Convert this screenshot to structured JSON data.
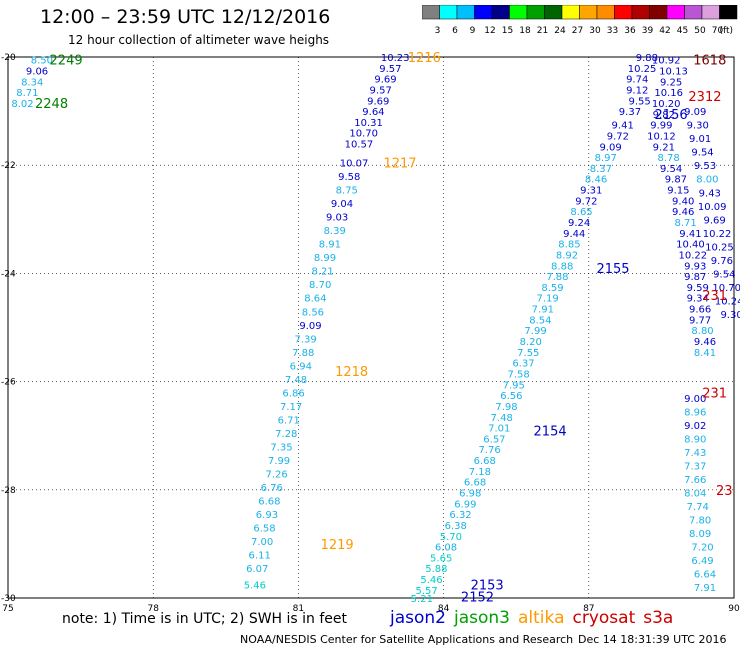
{
  "header": {
    "title": "12:00 – 23:59 UTC 12/12/2016",
    "subtitle": "12 hour collection of altimeter wave heighs"
  },
  "colorbar": {
    "labels": [
      "3",
      "6",
      "9",
      "12",
      "15",
      "18",
      "21",
      "24",
      "27",
      "30",
      "33",
      "36",
      "39",
      "42",
      "45",
      "50",
      "70",
      "(ft)"
    ],
    "colors": [
      "#808080",
      "#00ffff",
      "#00bfff",
      "#0000ff",
      "#00008b",
      "#00ff00",
      "#00a000",
      "#006400",
      "#ffff00",
      "#ffa500",
      "#ff8c00",
      "#ff0000",
      "#b00000",
      "#800000",
      "#ff00ff",
      "#ba55d3",
      "#dda0dd",
      "#000000"
    ]
  },
  "footer": {
    "note": "note: 1) Time is in UTC; 2) SWH is in feet",
    "credit": "NOAA/NESDIS Center for Satellite Applications and Research",
    "date": "Dec 14 18:31:39 UTC 2016"
  },
  "satellites": [
    {
      "name": "jason2",
      "color": "#0000cc"
    },
    {
      "name": "jason3",
      "color": "#00a000"
    },
    {
      "name": "altika",
      "color": "#ff9900"
    },
    {
      "name": "cryosat",
      "color": "#cc0000"
    },
    {
      "name": "s3a",
      "color": "#cc0000"
    }
  ],
  "chart_data": {
    "type": "scatter",
    "xlim": [
      75,
      90
    ],
    "ylim": [
      -30,
      -20
    ],
    "xticks": [
      75,
      78,
      81,
      84,
      87,
      90
    ],
    "yticks": [
      -20,
      -22,
      -24,
      -26,
      -28,
      -30
    ],
    "grid": true,
    "track_labels": [
      {
        "text": "2249",
        "x": 76.2,
        "y": -20.05,
        "color": "#008000"
      },
      {
        "text": "2248",
        "x": 75.9,
        "y": -20.85,
        "color": "#008000"
      },
      {
        "text": "1216",
        "x": 83.6,
        "y": -20.0,
        "color": "#ff9900"
      },
      {
        "text": "1217",
        "x": 83.1,
        "y": -21.95,
        "color": "#ff9900"
      },
      {
        "text": "1218",
        "x": 82.1,
        "y": -25.8,
        "color": "#ff9900"
      },
      {
        "text": "1219",
        "x": 81.8,
        "y": -29.0,
        "color": "#ff9900"
      },
      {
        "text": "2155",
        "x": 87.5,
        "y": -23.9,
        "color": "#0000cc"
      },
      {
        "text": "2154",
        "x": 86.2,
        "y": -26.9,
        "color": "#0000cc"
      },
      {
        "text": "2153",
        "x": 84.9,
        "y": -29.75,
        "color": "#0000cc"
      },
      {
        "text": "2152",
        "x": 84.7,
        "y": -29.97,
        "color": "#0000cc"
      },
      {
        "text": "2156",
        "x": 88.7,
        "y": -21.05,
        "color": "#0000cc"
      },
      {
        "text": "1618",
        "x": 89.5,
        "y": -20.05,
        "color": "#800000"
      },
      {
        "text": "2312",
        "x": 89.4,
        "y": -20.72,
        "color": "#cc0000"
      },
      {
        "text": "231",
        "x": 89.6,
        "y": -24.4,
        "color": "#cc0000"
      },
      {
        "text": "231",
        "x": 89.6,
        "y": -26.2,
        "color": "#cc0000"
      },
      {
        "text": "23",
        "x": 89.8,
        "y": -28.0,
        "color": "#cc0000"
      }
    ],
    "series": [
      {
        "name": "2249",
        "color_hint": "mixed",
        "points": [
          [
            75.7,
            -20.05,
            "8.50"
          ],
          [
            75.6,
            -20.25,
            "9.06"
          ],
          [
            75.5,
            -20.45,
            "8.34"
          ],
          [
            75.4,
            -20.65,
            "8.71"
          ],
          [
            75.3,
            -20.85,
            "8.02"
          ]
        ]
      },
      {
        "name": "1216",
        "points": [
          [
            83.0,
            -20.0,
            "10.23"
          ],
          [
            82.9,
            -20.2,
            "9.57"
          ],
          [
            82.8,
            -20.4,
            "9.69"
          ],
          [
            82.7,
            -20.6,
            "9.57"
          ],
          [
            82.65,
            -20.8,
            "9.69"
          ],
          [
            82.55,
            -21.0,
            "9.64"
          ],
          [
            82.45,
            -21.2,
            "10.31"
          ],
          [
            82.35,
            -21.4,
            "10.70"
          ],
          [
            82.25,
            -21.6,
            "10.57"
          ],
          [
            82.15,
            -21.95,
            "10.07"
          ],
          [
            82.05,
            -22.2,
            "9.58"
          ],
          [
            82.0,
            -22.45,
            "8.75"
          ],
          [
            81.9,
            -22.7,
            "9.04"
          ],
          [
            81.8,
            -22.95,
            "9.03"
          ],
          [
            81.75,
            -23.2,
            "8.39"
          ],
          [
            81.65,
            -23.45,
            "8.91"
          ],
          [
            81.55,
            -23.7,
            "8.99"
          ],
          [
            81.5,
            -23.95,
            "8.21"
          ],
          [
            81.45,
            -24.2,
            "8.70"
          ],
          [
            81.35,
            -24.45,
            "8.64"
          ],
          [
            81.3,
            -24.7,
            "8.56"
          ],
          [
            81.25,
            -24.95,
            "9.09"
          ],
          [
            81.15,
            -25.2,
            "7.39"
          ],
          [
            81.1,
            -25.45,
            "7.88"
          ],
          [
            81.05,
            -25.7,
            "6.94"
          ],
          [
            80.95,
            -25.95,
            "7.48"
          ],
          [
            80.9,
            -26.2,
            "6.86"
          ],
          [
            80.85,
            -26.45,
            "7.17"
          ],
          [
            80.8,
            -26.7,
            "6.71"
          ],
          [
            80.75,
            -26.95,
            "7.28"
          ],
          [
            80.65,
            -27.2,
            "7.35"
          ],
          [
            80.6,
            -27.45,
            "7.99"
          ],
          [
            80.55,
            -27.7,
            "7.26"
          ],
          [
            80.45,
            -27.95,
            "6.76"
          ],
          [
            80.4,
            -28.2,
            "6.68"
          ],
          [
            80.35,
            -28.45,
            "6.93"
          ],
          [
            80.3,
            -28.7,
            "6.58"
          ],
          [
            80.25,
            -28.95,
            "7.00"
          ],
          [
            80.2,
            -29.2,
            "6.11"
          ],
          [
            80.15,
            -29.45,
            "6.07"
          ],
          [
            80.1,
            -29.75,
            "5.46"
          ]
        ]
      },
      {
        "name": "2155",
        "points": [
          [
            87.85,
            -21.0,
            "9.37"
          ],
          [
            87.7,
            -21.25,
            "9.41"
          ],
          [
            87.6,
            -21.45,
            "9.72"
          ],
          [
            87.45,
            -21.65,
            "9.09"
          ],
          [
            87.35,
            -21.85,
            "8.97"
          ],
          [
            87.25,
            -22.05,
            "8.37"
          ],
          [
            87.15,
            -22.25,
            "8.46"
          ],
          [
            87.05,
            -22.45,
            "9.31"
          ],
          [
            86.95,
            -22.65,
            "9.72"
          ],
          [
            86.85,
            -22.85,
            "8.65"
          ],
          [
            86.8,
            -23.05,
            "9.24"
          ],
          [
            86.7,
            -23.25,
            "9.44"
          ],
          [
            86.6,
            -23.45,
            "8.85"
          ],
          [
            86.55,
            -23.65,
            "8.92"
          ],
          [
            86.45,
            -23.85,
            "8.88"
          ],
          [
            86.35,
            -24.05,
            "7.88"
          ],
          [
            86.25,
            -24.25,
            "8.59"
          ],
          [
            86.15,
            -24.45,
            "7.19"
          ],
          [
            86.05,
            -24.65,
            "7.91"
          ],
          [
            86.0,
            -24.85,
            "8.54"
          ],
          [
            85.9,
            -25.05,
            "7.99"
          ],
          [
            85.8,
            -25.25,
            "8.20"
          ],
          [
            85.75,
            -25.45,
            "7.55"
          ],
          [
            85.65,
            -25.65,
            "6.37"
          ],
          [
            85.55,
            -25.85,
            "7.58"
          ],
          [
            85.45,
            -26.05,
            "7.95"
          ],
          [
            85.4,
            -26.25,
            "6.56"
          ],
          [
            85.3,
            -26.45,
            "7.98"
          ],
          [
            85.2,
            -26.65,
            "7.48"
          ],
          [
            85.15,
            -26.85,
            "7.01"
          ],
          [
            85.05,
            -27.05,
            "6.57"
          ],
          [
            84.95,
            -27.25,
            "7.76"
          ],
          [
            84.85,
            -27.45,
            "6.68"
          ],
          [
            84.75,
            -27.65,
            "7.18"
          ],
          [
            84.65,
            -27.85,
            "6.68"
          ],
          [
            84.55,
            -28.05,
            "6.98"
          ],
          [
            84.45,
            -28.25,
            "6.99"
          ],
          [
            84.35,
            -28.45,
            "6.32"
          ],
          [
            84.25,
            -28.65,
            "6.38"
          ],
          [
            84.15,
            -28.85,
            "5.70"
          ],
          [
            84.05,
            -29.05,
            "6.08"
          ],
          [
            83.95,
            -29.25,
            "5.65"
          ],
          [
            83.85,
            -29.45,
            "5.88"
          ],
          [
            83.75,
            -29.65,
            "5.46"
          ],
          [
            83.65,
            -29.85,
            "5.57"
          ],
          [
            83.55,
            -30.0,
            "5.21"
          ]
        ]
      },
      {
        "name": "2156",
        "points": [
          [
            88.2,
            -20.0,
            "9.88"
          ],
          [
            88.1,
            -20.2,
            "10.25"
          ],
          [
            88.0,
            -20.4,
            "9.74"
          ],
          [
            88.0,
            -20.6,
            "9.12"
          ],
          [
            88.05,
            -20.8,
            "9.55"
          ],
          [
            88.6,
            -20.05,
            "10.92"
          ],
          [
            88.75,
            -20.25,
            "10.13"
          ],
          [
            88.7,
            -20.45,
            "9.25"
          ],
          [
            88.65,
            -20.65,
            "10.16"
          ],
          [
            88.6,
            -20.85,
            "10.20"
          ],
          [
            88.55,
            -21.05,
            "9.82"
          ],
          [
            88.5,
            -21.25,
            "9.99"
          ],
          [
            88.5,
            -21.45,
            "10.12"
          ],
          [
            88.55,
            -21.65,
            "9.21"
          ],
          [
            88.65,
            -21.85,
            "8.78"
          ],
          [
            88.7,
            -22.05,
            "9.54"
          ],
          [
            88.8,
            -22.25,
            "9.87"
          ],
          [
            88.85,
            -22.45,
            "9.15"
          ],
          [
            88.95,
            -22.65,
            "9.40"
          ],
          [
            88.95,
            -22.85,
            "9.46"
          ],
          [
            89.0,
            -23.05,
            "8.71"
          ],
          [
            89.1,
            -23.25,
            "9.41"
          ],
          [
            89.1,
            -23.45,
            "10.40"
          ],
          [
            89.15,
            -23.65,
            "10.22"
          ],
          [
            89.2,
            -23.85,
            "9.93"
          ],
          [
            89.2,
            -24.05,
            "9.87"
          ],
          [
            89.25,
            -24.25,
            "9.59"
          ],
          [
            89.25,
            -24.45,
            "9.34"
          ],
          [
            89.3,
            -24.65,
            "9.66"
          ],
          [
            89.3,
            -24.85,
            "9.77"
          ],
          [
            89.35,
            -25.05,
            "8.80"
          ],
          [
            89.4,
            -25.25,
            "9.46"
          ],
          [
            89.4,
            -25.45,
            "8.41"
          ]
        ]
      },
      {
        "name": "2312",
        "points": [
          [
            89.2,
            -21.0,
            "9.09"
          ],
          [
            89.25,
            -21.25,
            "9.30"
          ],
          [
            89.3,
            -21.5,
            "9.01"
          ],
          [
            89.35,
            -21.75,
            "9.54"
          ],
          [
            89.4,
            -22.0,
            "9.53"
          ],
          [
            89.45,
            -22.25,
            "8.00"
          ],
          [
            89.5,
            -22.5,
            "9.43"
          ],
          [
            89.55,
            -22.75,
            "10.09"
          ],
          [
            89.6,
            -23.0,
            "9.69"
          ],
          [
            89.65,
            -23.25,
            "10.22"
          ],
          [
            89.7,
            -23.5,
            "10.25"
          ],
          [
            89.75,
            -23.75,
            "9.76"
          ],
          [
            89.8,
            -24.0,
            "9.54"
          ],
          [
            89.85,
            -24.25,
            "10.70"
          ],
          [
            89.9,
            -24.5,
            "10.24"
          ],
          [
            89.95,
            -24.75,
            "9.30"
          ]
        ]
      },
      {
        "name": "1219tail",
        "points": [
          [
            89.2,
            -26.3,
            "9.00"
          ],
          [
            89.2,
            -26.55,
            "8.96"
          ],
          [
            89.2,
            -26.8,
            "9.02"
          ],
          [
            89.2,
            -27.05,
            "8.90"
          ],
          [
            89.2,
            -27.3,
            "7.43"
          ],
          [
            89.2,
            -27.55,
            "7.37"
          ],
          [
            89.2,
            -27.8,
            "7.66"
          ],
          [
            89.2,
            -28.05,
            "8.04"
          ],
          [
            89.25,
            -28.3,
            "7.74"
          ],
          [
            89.3,
            -28.55,
            "7.80"
          ],
          [
            89.3,
            -28.8,
            "8.09"
          ],
          [
            89.35,
            -29.05,
            "7.20"
          ],
          [
            89.35,
            -29.3,
            "6.49"
          ],
          [
            89.4,
            -29.55,
            "6.64"
          ],
          [
            89.4,
            -29.8,
            "7.91"
          ]
        ]
      }
    ]
  }
}
